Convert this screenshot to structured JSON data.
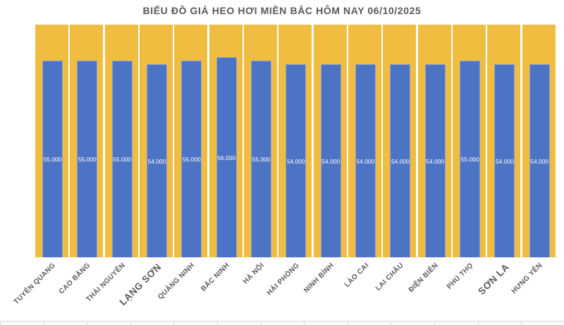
{
  "title": "BIỂU ĐỒ GIÁ HEO HƠI MIỀN BẮC HÔM NAY 06/10/2025",
  "colors": {
    "background_column": "#F1BD41",
    "bar": "#4D74C4",
    "title_text": "#595959",
    "axis_label_text": "#595959",
    "value_label_text": "#FFFFFF"
  },
  "chart_data": {
    "type": "bar",
    "title": "BIỂU ĐỒ GIÁ HEO HƠI MIỀN BẮC HÔM NAY 06/10/2025",
    "categories": [
      "TUYÊN QUANG",
      "CAO BẰNG",
      "THÁI NGUYÊN",
      "LẠNG SƠN",
      "QUẢNG NINH",
      "BẮC NINH",
      "HÀ NỘI",
      "HẢI PHÒNG",
      "NINH BÌNH",
      "LÀO CAI",
      "LAI CHÂU",
      "ĐIỆN BIÊN",
      "PHÚ THỌ",
      "SƠN LA",
      "HƯNG YÊN"
    ],
    "values": [
      55000,
      55000,
      55000,
      54000,
      55000,
      56000,
      55000,
      54000,
      54000,
      54000,
      54000,
      54000,
      55000,
      54000,
      54000
    ],
    "value_labels": [
      "55.000",
      "55.000",
      "55.000",
      "54.000",
      "55.000",
      "56.000",
      "55.000",
      "54.000",
      "54.000",
      "54.000",
      "54.000",
      "54.000",
      "55.000",
      "54.000",
      "54.000"
    ],
    "xlabel": "",
    "ylabel": "",
    "ylim": [
      0,
      65000
    ],
    "background_series_value": 65000,
    "grid": false,
    "legend": "none",
    "large_category_labels": [
      "LẠNG SƠN",
      "SƠN LA"
    ]
  }
}
